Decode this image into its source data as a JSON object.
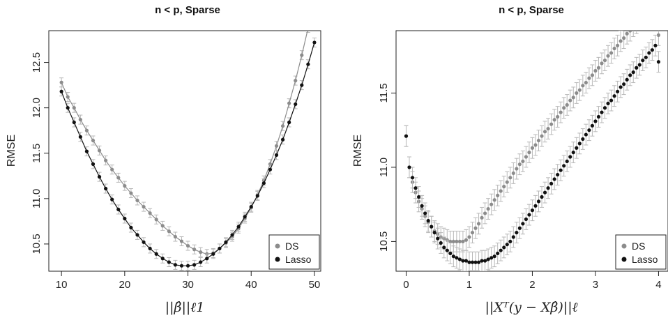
{
  "chart_data": [
    {
      "type": "line",
      "title": "n < p, Sparse",
      "ylabel": "RMSE",
      "xlabel": "||β̂||ℓ1",
      "xlim": [
        8,
        51
      ],
      "ylim": [
        10.2,
        12.85
      ],
      "xticks": [
        "10",
        "20",
        "30",
        "40",
        "50"
      ],
      "yticks": [
        "10.5",
        "11.0",
        "11.5",
        "12.0",
        "12.5"
      ],
      "legend": {
        "position": "bottom-right",
        "entries": [
          "DS",
          "Lasso"
        ]
      },
      "series": [
        {
          "name": "DS",
          "color": "#8c8c8c",
          "x": [
            10,
            11,
            12,
            13,
            14,
            15,
            16,
            17,
            18,
            19,
            20,
            21,
            22,
            23,
            24,
            25,
            26,
            27,
            28,
            29,
            30,
            31,
            32,
            33,
            34,
            35,
            36,
            37,
            38,
            39,
            40,
            41,
            42,
            43,
            44,
            45,
            46,
            47,
            48,
            49
          ],
          "y": [
            12.28,
            12.12,
            12.0,
            11.87,
            11.75,
            11.64,
            11.53,
            11.42,
            11.32,
            11.23,
            11.14,
            11.06,
            10.98,
            10.91,
            10.84,
            10.77,
            10.7,
            10.64,
            10.58,
            10.53,
            10.48,
            10.44,
            10.41,
            10.39,
            10.4,
            10.45,
            10.51,
            10.58,
            10.67,
            10.78,
            10.9,
            11.04,
            11.2,
            11.38,
            11.58,
            11.8,
            12.05,
            12.3,
            12.58,
            12.88
          ],
          "error": 0.05
        },
        {
          "name": "Lasso",
          "color": "#111111",
          "x": [
            10,
            11,
            12,
            13,
            14,
            15,
            16,
            17,
            18,
            19,
            20,
            21,
            22,
            23,
            24,
            25,
            26,
            27,
            28,
            29,
            30,
            31,
            32,
            33,
            34,
            35,
            36,
            37,
            38,
            39,
            40,
            41,
            42,
            43,
            44,
            45,
            46,
            47,
            48,
            49,
            50
          ],
          "y": [
            12.18,
            12.0,
            11.84,
            11.68,
            11.52,
            11.38,
            11.24,
            11.11,
            10.99,
            10.88,
            10.78,
            10.68,
            10.6,
            10.52,
            10.45,
            10.39,
            10.34,
            10.3,
            10.27,
            10.26,
            10.26,
            10.27,
            10.3,
            10.34,
            10.39,
            10.45,
            10.52,
            10.6,
            10.69,
            10.8,
            10.91,
            11.03,
            11.17,
            11.32,
            11.48,
            11.65,
            11.84,
            12.04,
            12.25,
            12.48,
            12.72
          ],
          "error": 0.05
        }
      ]
    },
    {
      "type": "scatter",
      "title": "n < p, Sparse",
      "ylabel": "RMSE",
      "xlabel": "||Xᵀ(y − Xβ̂)||ℓ",
      "xlim": [
        -0.16,
        4.15
      ],
      "ylim": [
        10.3,
        11.92
      ],
      "xticks": [
        "0",
        "1",
        "2",
        "3",
        "4"
      ],
      "yticks": [
        "10.5",
        "11.0",
        "11.5"
      ],
      "legend": {
        "position": "bottom-right",
        "entries": [
          "DS",
          "Lasso"
        ]
      },
      "series": [
        {
          "name": "DS",
          "color": "#8c8c8c",
          "error": 0.07,
          "x": [
            0.0,
            0.05,
            0.1,
            0.15,
            0.2,
            0.25,
            0.3,
            0.35,
            0.4,
            0.45,
            0.5,
            0.55,
            0.6,
            0.65,
            0.7,
            0.75,
            0.8,
            0.85,
            0.9,
            0.95,
            1.0,
            1.05,
            1.1,
            1.15,
            1.2,
            1.25,
            1.3,
            1.35,
            1.4,
            1.45,
            1.5,
            1.55,
            1.6,
            1.65,
            1.7,
            1.75,
            1.8,
            1.85,
            1.9,
            1.95,
            2.0,
            2.05,
            2.1,
            2.15,
            2.2,
            2.25,
            2.3,
            2.35,
            2.4,
            2.45,
            2.5,
            2.55,
            2.6,
            2.65,
            2.7,
            2.75,
            2.8,
            2.85,
            2.9,
            2.95,
            3.0,
            3.05,
            3.1,
            3.15,
            3.2,
            3.25,
            3.3,
            3.35,
            3.4,
            3.45,
            3.5,
            3.55,
            3.6,
            3.65,
            3.7,
            3.75,
            3.8,
            3.85,
            3.9,
            3.95,
            4.0
          ],
          "y": [
            11.21,
            11.0,
            10.9,
            10.83,
            10.77,
            10.72,
            10.67,
            10.63,
            10.6,
            10.57,
            10.55,
            10.53,
            10.52,
            10.51,
            10.5,
            10.5,
            10.5,
            10.5,
            10.5,
            10.51,
            10.53,
            10.56,
            10.59,
            10.62,
            10.66,
            10.69,
            10.72,
            10.75,
            10.78,
            10.81,
            10.84,
            10.87,
            10.9,
            10.93,
            10.96,
            10.99,
            11.02,
            11.04,
            11.07,
            11.1,
            11.13,
            11.15,
            11.18,
            11.21,
            11.24,
            11.26,
            11.29,
            11.32,
            11.34,
            11.37,
            11.4,
            11.42,
            11.45,
            11.47,
            11.5,
            11.52,
            11.55,
            11.57,
            11.6,
            11.62,
            11.65,
            11.67,
            11.7,
            11.72,
            11.75,
            11.77,
            11.8,
            11.82,
            11.85,
            11.87,
            11.9,
            11.92,
            11.95,
            11.97,
            12.0,
            12.02,
            12.05,
            12.07,
            12.1,
            12.12,
            11.89
          ]
        },
        {
          "name": "Lasso",
          "color": "#111111",
          "error": 0.07,
          "x": [
            0.0,
            0.05,
            0.1,
            0.15,
            0.2,
            0.25,
            0.3,
            0.35,
            0.4,
            0.45,
            0.5,
            0.55,
            0.6,
            0.65,
            0.7,
            0.75,
            0.8,
            0.85,
            0.9,
            0.95,
            1.0,
            1.05,
            1.1,
            1.15,
            1.2,
            1.25,
            1.3,
            1.35,
            1.4,
            1.45,
            1.5,
            1.55,
            1.6,
            1.65,
            1.7,
            1.75,
            1.8,
            1.85,
            1.9,
            1.95,
            2.0,
            2.05,
            2.1,
            2.15,
            2.2,
            2.25,
            2.3,
            2.35,
            2.4,
            2.45,
            2.5,
            2.55,
            2.6,
            2.65,
            2.7,
            2.75,
            2.8,
            2.85,
            2.9,
            2.95,
            3.0,
            3.05,
            3.1,
            3.15,
            3.2,
            3.25,
            3.3,
            3.35,
            3.4,
            3.45,
            3.5,
            3.55,
            3.6,
            3.65,
            3.7,
            3.75,
            3.8,
            3.85,
            3.9,
            3.95,
            4.0
          ],
          "y": [
            11.21,
            11.0,
            10.93,
            10.86,
            10.8,
            10.74,
            10.69,
            10.64,
            10.6,
            10.56,
            10.52,
            10.49,
            10.46,
            10.44,
            10.42,
            10.4,
            10.39,
            10.38,
            10.37,
            10.37,
            10.36,
            10.36,
            10.36,
            10.36,
            10.37,
            10.37,
            10.38,
            10.39,
            10.4,
            10.42,
            10.44,
            10.46,
            10.48,
            10.5,
            10.53,
            10.56,
            10.59,
            10.62,
            10.65,
            10.68,
            10.71,
            10.74,
            10.77,
            10.8,
            10.83,
            10.86,
            10.89,
            10.92,
            10.95,
            10.98,
            11.01,
            11.04,
            11.07,
            11.1,
            11.13,
            11.16,
            11.19,
            11.22,
            11.25,
            11.28,
            11.31,
            11.34,
            11.37,
            11.4,
            11.43,
            11.45,
            11.48,
            11.51,
            11.54,
            11.56,
            11.59,
            11.62,
            11.64,
            11.67,
            11.69,
            11.72,
            11.74,
            11.77,
            11.79,
            11.82,
            11.71
          ]
        }
      ]
    }
  ]
}
